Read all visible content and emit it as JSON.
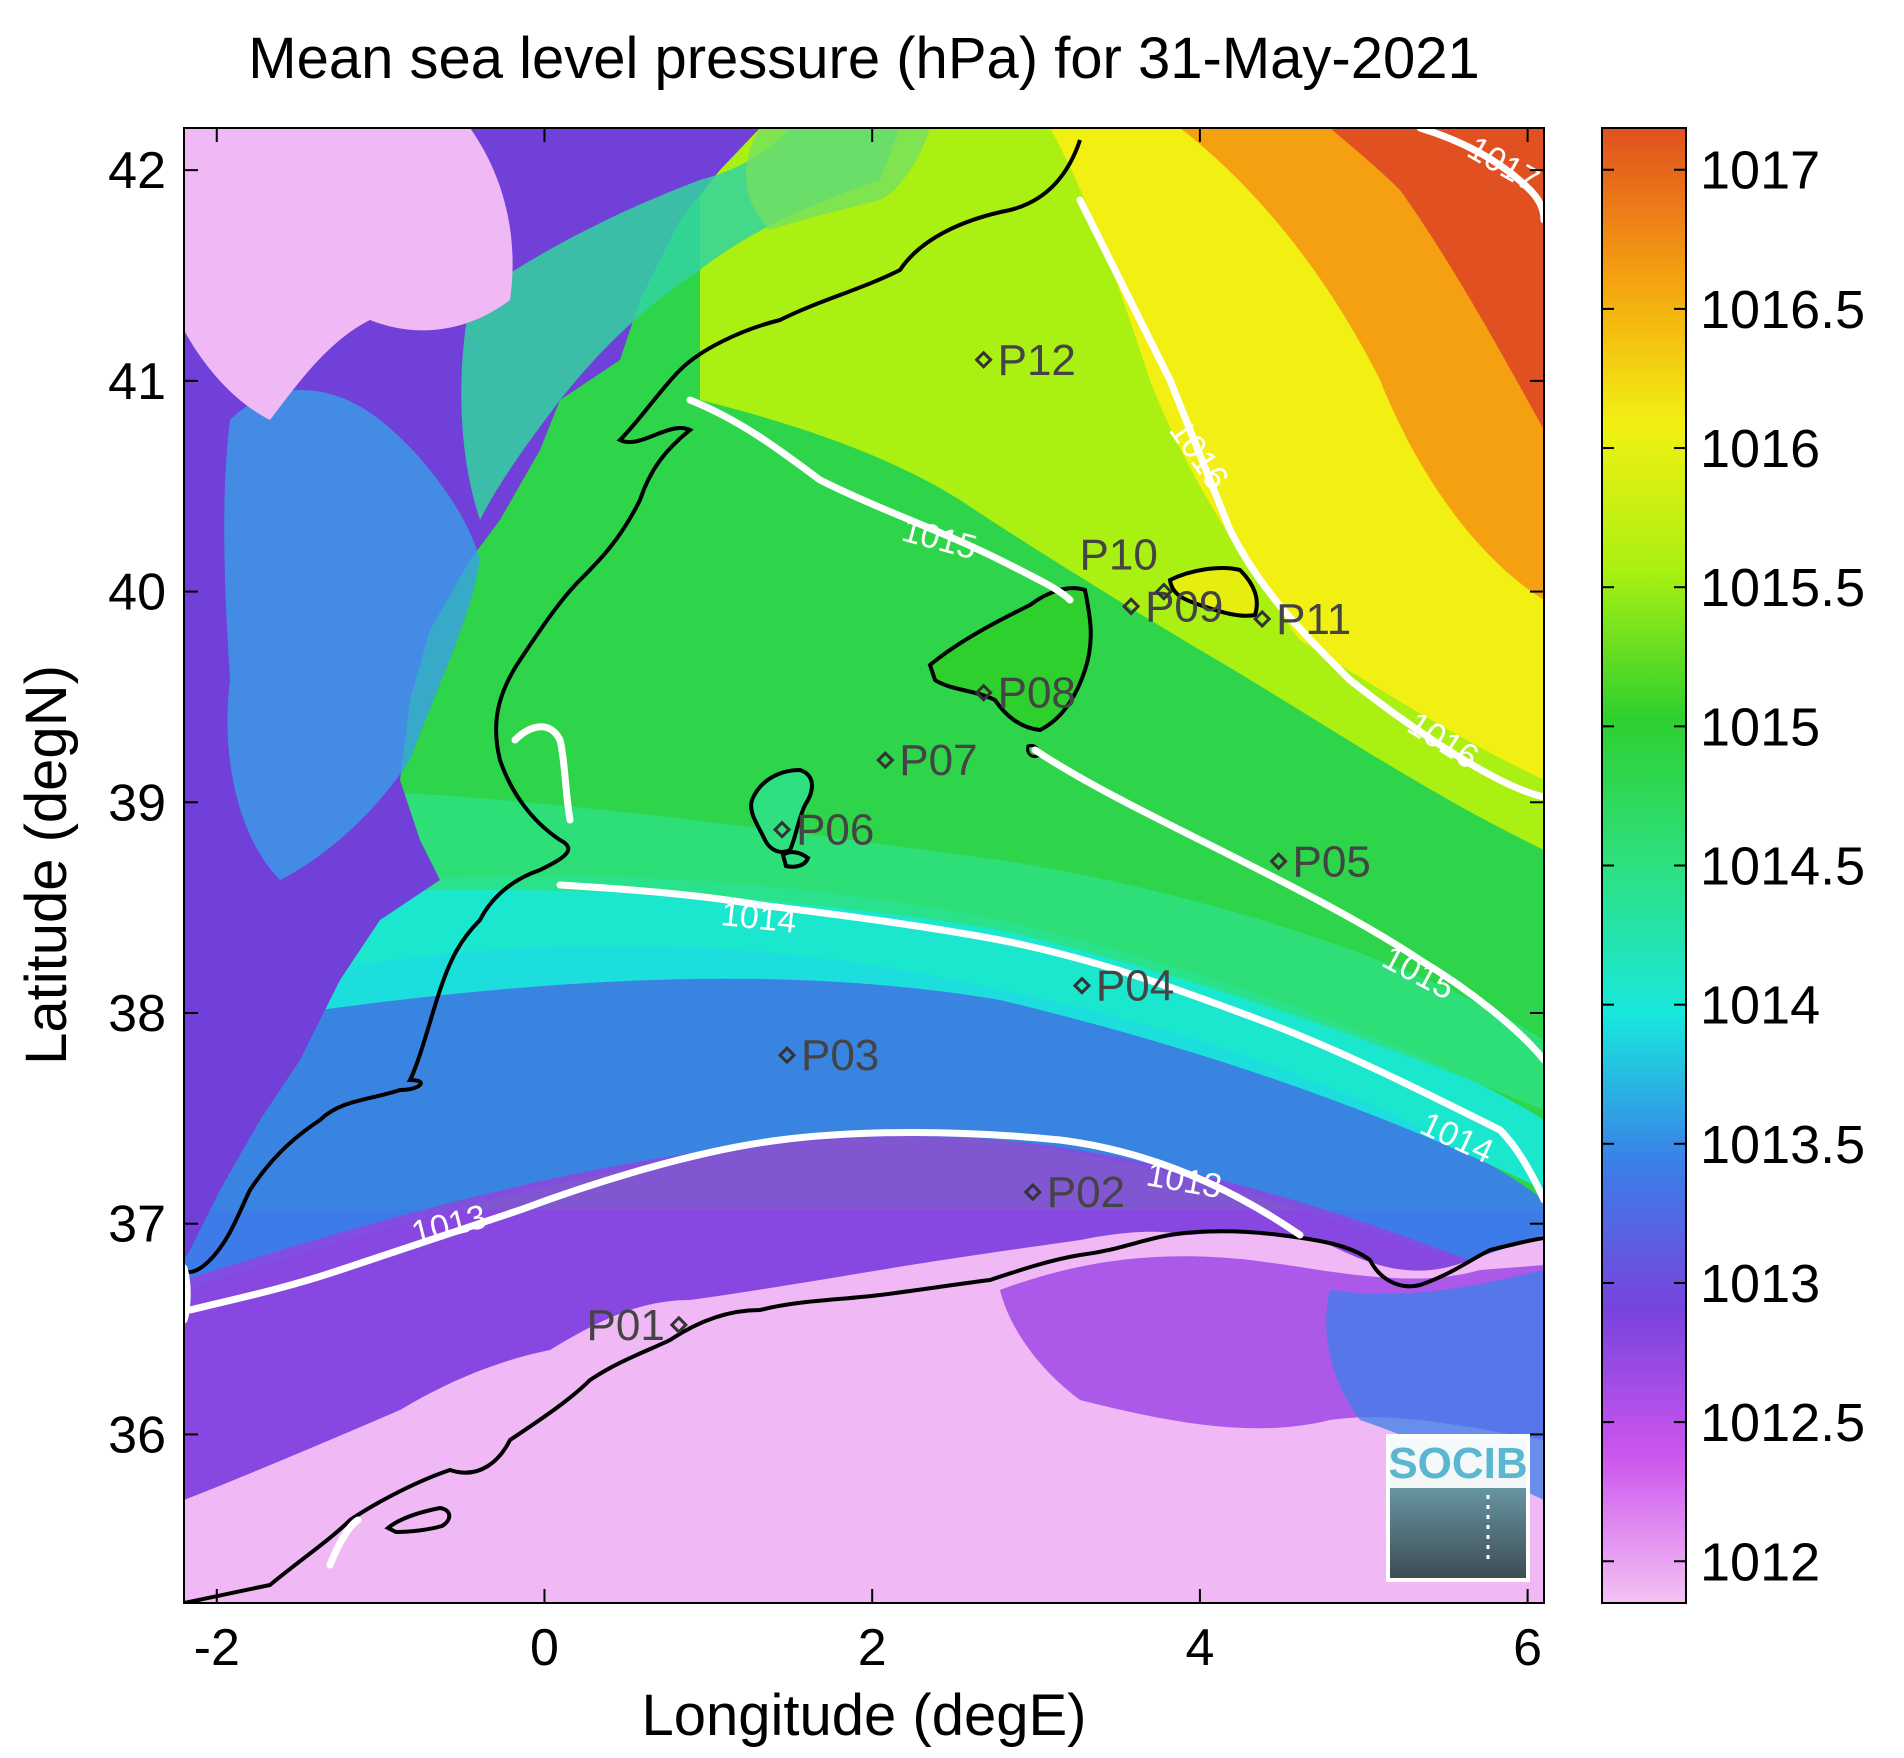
{
  "title": "Mean sea level pressure (hPa) for 31-May-2021",
  "xlabel": "Longitude (degE)",
  "ylabel": "Latitude (degN)",
  "x_ticks": [
    "-2",
    "0",
    "2",
    "4",
    "6"
  ],
  "y_ticks": [
    "36",
    "37",
    "38",
    "39",
    "40",
    "41",
    "42"
  ],
  "colorbar": {
    "ticks": [
      "1012",
      "1012.5",
      "1013",
      "1013.5",
      "1014",
      "1014.5",
      "1015",
      "1015.5",
      "1016",
      "1016.5",
      "1017"
    ],
    "colors": [
      "#f4c2f4",
      "#cc55ee",
      "#7744dd",
      "#3a80e8",
      "#19e8dd",
      "#2ee080",
      "#2ed02e",
      "#aaf012",
      "#f2f012",
      "#f5a010",
      "#e05020"
    ]
  },
  "chart_data": {
    "type": "heatmap",
    "title": "Mean sea level pressure (hPa) for 31-May-2021",
    "xlabel": "Longitude (degE)",
    "ylabel": "Latitude (degN)",
    "xlim": [
      -2.2,
      6.1
    ],
    "ylim": [
      35.2,
      42.2
    ],
    "clim": [
      1011.85,
      1017.15
    ],
    "colorbar_label": "",
    "contour_levels": [
      {
        "level": 1013,
        "label": "1013"
      },
      {
        "level": 1014,
        "label": "1014"
      },
      {
        "level": 1015,
        "label": "1015"
      },
      {
        "level": 1016,
        "label": "1016"
      },
      {
        "level": 1017,
        "label": "1017"
      }
    ],
    "stations": [
      {
        "name": "P01",
        "lon": 0.82,
        "lat": 36.52
      },
      {
        "name": "P02",
        "lon": 2.98,
        "lat": 37.15
      },
      {
        "name": "P03",
        "lon": 1.48,
        "lat": 37.8
      },
      {
        "name": "P04",
        "lon": 3.28,
        "lat": 38.13
      },
      {
        "name": "P05",
        "lon": 4.48,
        "lat": 38.72
      },
      {
        "name": "P06",
        "lon": 1.45,
        "lat": 38.87
      },
      {
        "name": "P07",
        "lon": 2.08,
        "lat": 39.2
      },
      {
        "name": "P08",
        "lon": 2.68,
        "lat": 39.52
      },
      {
        "name": "P09",
        "lon": 3.58,
        "lat": 39.93
      },
      {
        "name": "P10",
        "lon": 3.78,
        "lat": 40.0
      },
      {
        "name": "P11",
        "lon": 4.38,
        "lat": 39.87
      },
      {
        "name": "P12",
        "lon": 2.68,
        "lat": 41.1
      }
    ]
  },
  "logo": {
    "text": "SOCIB"
  }
}
